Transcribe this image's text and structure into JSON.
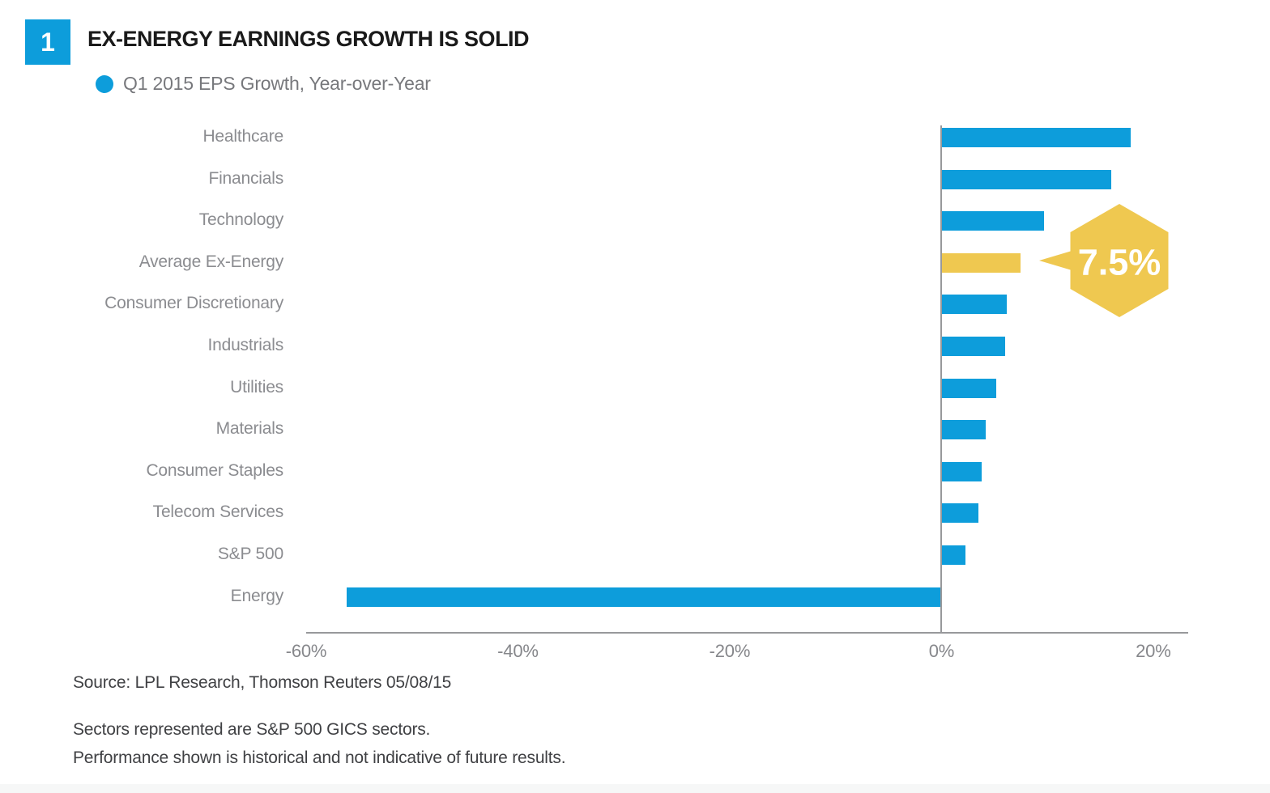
{
  "figure": {
    "number": "1",
    "title": "EX-ENERGY EARNINGS GROWTH IS SOLID"
  },
  "legend": {
    "label": "Q1 2015 EPS Growth, Year-over-Year"
  },
  "annotation": {
    "text": "7.5%"
  },
  "source": {
    "text": "Source: LPL Research, Thomson Reuters 05/08/15"
  },
  "disclosures": [
    "Sectors represented are S&P 500 GICS sectors.",
    "Performance shown is historical and not indicative of future results."
  ],
  "colors": {
    "blue": "#0D9DDB",
    "yellow": "#EFC850",
    "label_gray": "#8B8C90",
    "axis_gray": "#98999B",
    "footer_gray": "#404144"
  },
  "chart_data": {
    "type": "bar",
    "orientation": "horizontal",
    "title": "Q1 2015 EPS Growth, Year-over-Year",
    "categories": [
      "Healthcare",
      "Financials",
      "Technology",
      "Average Ex-Energy",
      "Consumer Discretionary",
      "Industrials",
      "Utilities",
      "Materials",
      "Consumer Staples",
      "Telecom Services",
      "S&P 500",
      "Energy"
    ],
    "values": [
      17.9,
      16.0,
      9.7,
      7.5,
      6.2,
      6.0,
      5.2,
      4.2,
      3.8,
      3.5,
      2.3,
      -56.2
    ],
    "unit": "percent",
    "highlight_category": "Average Ex-Energy",
    "highlight_value_label": "7.5%",
    "bar_color": "#0D9DDB",
    "highlight_color": "#EFC850",
    "xlim": [
      -60,
      23.3
    ],
    "xticks": [
      -60,
      -40,
      -20,
      0,
      20
    ],
    "xtick_labels": [
      "-60%",
      "-40%",
      "-20%",
      "0%",
      "20%"
    ],
    "grid": false,
    "legend_position": "top-left"
  }
}
